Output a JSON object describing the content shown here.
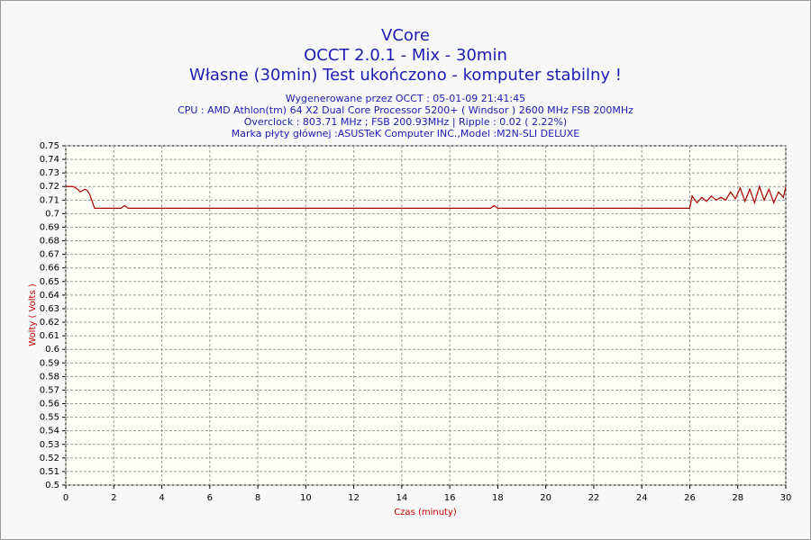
{
  "chart_data": {
    "type": "line",
    "title": "VCore",
    "subtitle": "OCCT 2.0.1 - Mix - 30min",
    "status": "Własne (30min) Test ukończono - komputer stabilny !",
    "info": [
      "Wygenerowane przez OCCT : 05-01-09 21:41:45",
      "CPU : AMD Athlon(tm) 64 X2 Dual Core Processor 5200+ ( Windsor ) 2600 MHz FSB 200MHz",
      "Overclock : 803.71 MHz ; FSB 200.93MHz | Ripple : 0.02 ( 2.22%)",
      "Marka płyty głównej :ASUSTeK Computer INC.,Model :M2N-SLI DELUXE"
    ],
    "x_label": "Czas (minuty)",
    "y_label": "Wolty ( Volts )",
    "color": "#a80000",
    "grid": true,
    "x": [
      0,
      0.3,
      0.5,
      0.6,
      0.8,
      0.9,
      1.0,
      1.2,
      2.3,
      2.45,
      2.6,
      17.7,
      17.85,
      18,
      26,
      26.1,
      26.3,
      26.5,
      26.7,
      26.9,
      27.1,
      27.3,
      27.5,
      27.7,
      27.9,
      28.1,
      28.3,
      28.5,
      28.7,
      28.9,
      29.1,
      29.3,
      29.5,
      29.7,
      29.9,
      30
    ],
    "values": [
      0.72,
      0.72,
      0.718,
      0.716,
      0.718,
      0.717,
      0.714,
      0.704,
      0.704,
      0.706,
      0.704,
      0.704,
      0.706,
      0.704,
      0.704,
      0.713,
      0.708,
      0.712,
      0.709,
      0.713,
      0.71,
      0.712,
      0.71,
      0.716,
      0.711,
      0.719,
      0.709,
      0.718,
      0.708,
      0.72,
      0.71,
      0.718,
      0.708,
      0.716,
      0.712,
      0.72
    ],
    "xlim": [
      0,
      30
    ],
    "xticks": [
      0,
      2,
      4,
      6,
      8,
      10,
      12,
      14,
      16,
      18,
      20,
      22,
      24,
      26,
      28,
      30
    ],
    "ylim": [
      0.5,
      0.75
    ],
    "yticks": [
      0.5,
      0.51,
      0.52,
      0.53,
      0.54,
      0.55,
      0.56,
      0.57,
      0.58,
      0.59,
      0.6,
      0.61,
      0.62,
      0.63,
      0.64,
      0.65,
      0.66,
      0.67,
      0.68,
      0.69,
      0.7,
      0.71,
      0.72,
      0.73,
      0.74,
      0.75
    ]
  }
}
